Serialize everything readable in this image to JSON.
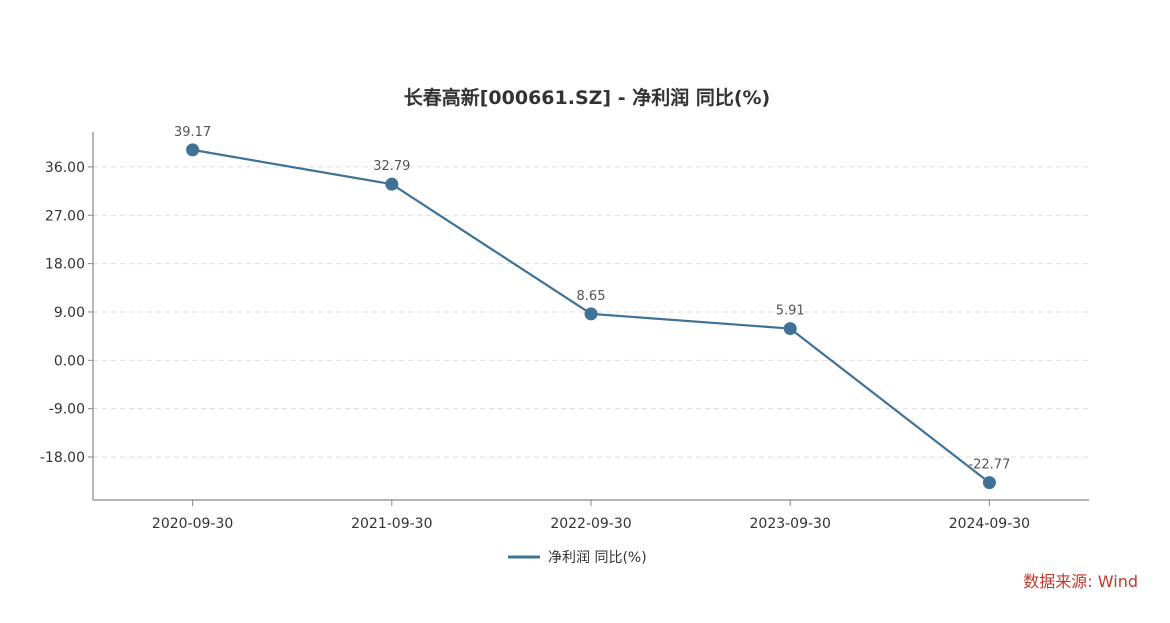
{
  "chart_data": {
    "type": "line",
    "title": "长春高新[000661.SZ] - 净利润 同比(%)",
    "categories": [
      "2020-09-30",
      "2021-09-30",
      "2022-09-30",
      "2023-09-30",
      "2024-09-30"
    ],
    "series": [
      {
        "name": "净利润 同比(%)",
        "values": [
          39.17,
          32.79,
          8.65,
          5.91,
          -22.77
        ],
        "labels": [
          "39.17",
          "32.79",
          "8.65",
          "5.91",
          "-22.77"
        ],
        "color": "#3f7296"
      }
    ],
    "yticks": [
      "36.00",
      "27.00",
      "18.00",
      "9.00",
      "0.00",
      "-9.00",
      "-18.00"
    ],
    "ytick_values": [
      36,
      27,
      18,
      9,
      0,
      -9,
      -18
    ],
    "ylim": [
      -26,
      42.5
    ],
    "grid": true,
    "legend_position": "bottom-center"
  },
  "source": "数据来源: Wind",
  "colors": {
    "series": "#3f7296",
    "grid": "#dddddd",
    "axis": "#888888",
    "source": "#c0392b"
  }
}
